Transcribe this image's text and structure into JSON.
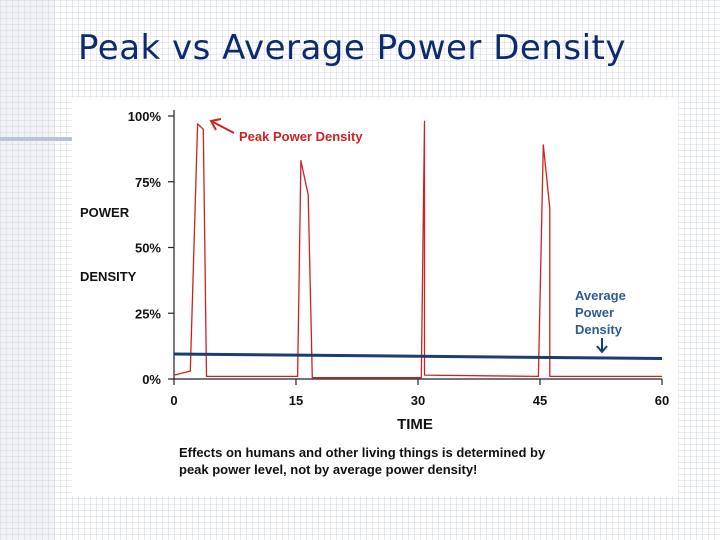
{
  "slide": {
    "title": "Peak vs Average Power Density"
  },
  "chart_data": {
    "type": "line",
    "ylabel_lines": [
      "POWER",
      "DENSITY"
    ],
    "xlabel": "TIME",
    "xlim": [
      0,
      60
    ],
    "ylim": [
      0,
      100
    ],
    "x_ticks": [
      "0",
      "15",
      "30",
      "45",
      "60"
    ],
    "y_ticks": [
      "0%",
      "25%",
      "50%",
      "75%",
      "100%"
    ],
    "series": [
      {
        "name": "Peak Power Density",
        "color": "#cc2222",
        "x": [
          0,
          2,
          2.9,
          3.6,
          4.0,
          4.0,
          15.2,
          15.6,
          16.5,
          17.0,
          17.0,
          30.4,
          30.8,
          30.8,
          44.8,
          45.4,
          46.2,
          46.2,
          60
        ],
        "y": [
          1.5,
          3,
          97,
          95,
          1,
          1,
          1,
          83,
          70,
          0.5,
          0.5,
          0.5,
          98,
          1.5,
          1,
          89,
          65,
          1,
          1
        ]
      },
      {
        "name": "Average Power Density",
        "color": "#1a3e6e",
        "x": [
          0,
          60
        ],
        "y": [
          9.5,
          7.8
        ]
      }
    ],
    "annotations": [
      {
        "id": "peak",
        "text": "Peak Power Density",
        "color": "#cc2222"
      },
      {
        "id": "average",
        "lines": [
          "Average",
          "Power",
          "Density"
        ],
        "color": "#2e5a96"
      }
    ],
    "caption_lines": [
      "Effects on humans and other living things is determined by",
      "peak power level, not by average power density!"
    ]
  }
}
